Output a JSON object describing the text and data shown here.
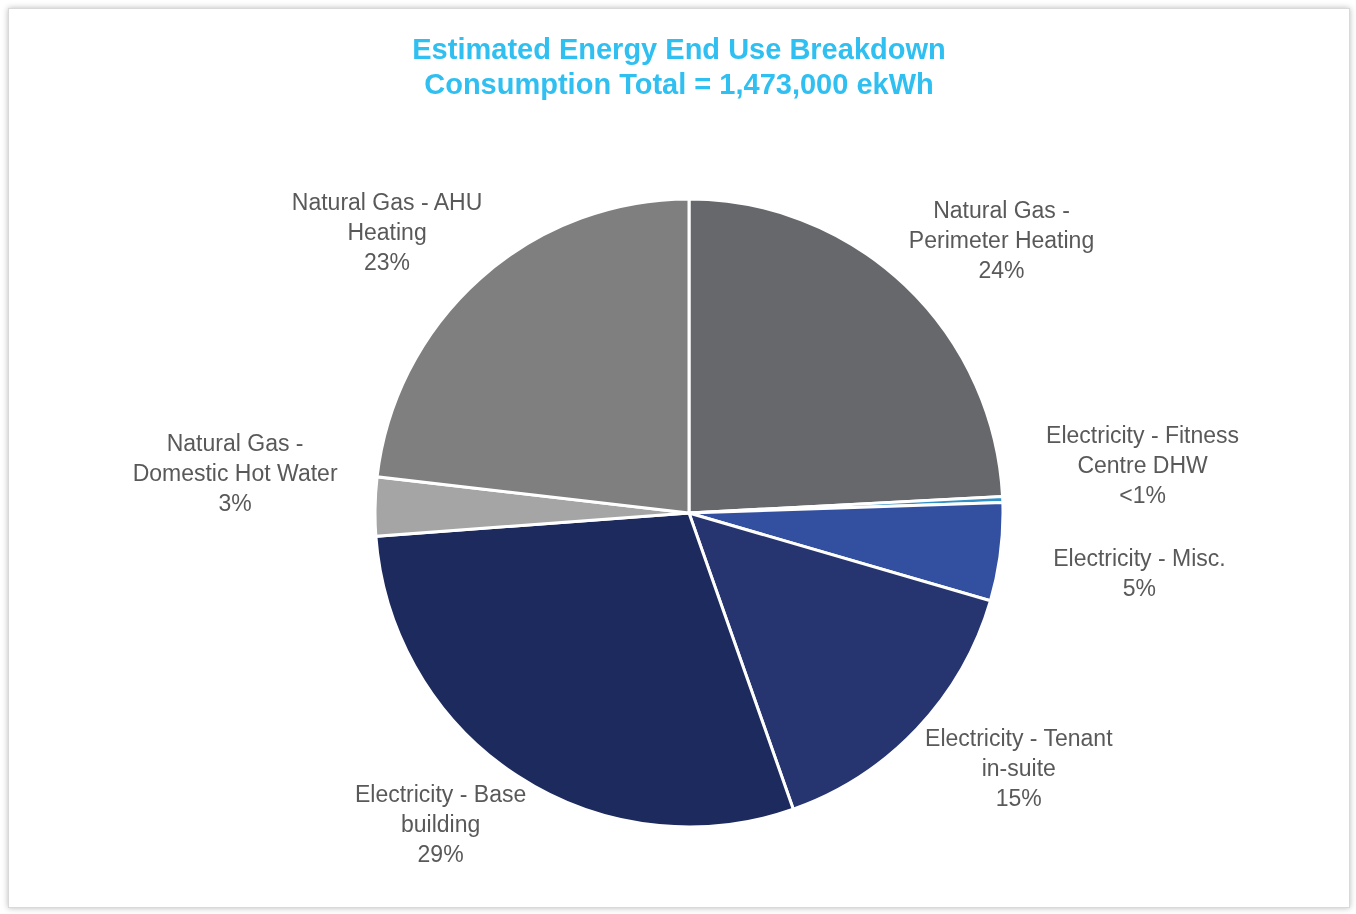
{
  "chart_data": {
    "type": "pie",
    "title": "Estimated Energy End Use Breakdown",
    "subtitle": "Consumption Total = 1,473,000 ekWh",
    "categories": [
      "Natural Gas - Perimeter Heating",
      "Electricity - Fitness Centre DHW",
      "Electricity - Misc.",
      "Electricity - Tenant in-suite",
      "Electricity - Base building",
      "Natural Gas - Domestic Hot Water",
      "Natural Gas - AHU Heating"
    ],
    "values": [
      24,
      0.3,
      5,
      15,
      29,
      3,
      23
    ],
    "value_labels": [
      "24%",
      "<1%",
      "5%",
      "15%",
      "29%",
      "3%",
      "23%"
    ],
    "colors": [
      "#67686c",
      "#2f8fc6",
      "#334fa0",
      "#263570",
      "#1c2a5e",
      "#a5a5a5",
      "#7f7f80"
    ]
  }
}
